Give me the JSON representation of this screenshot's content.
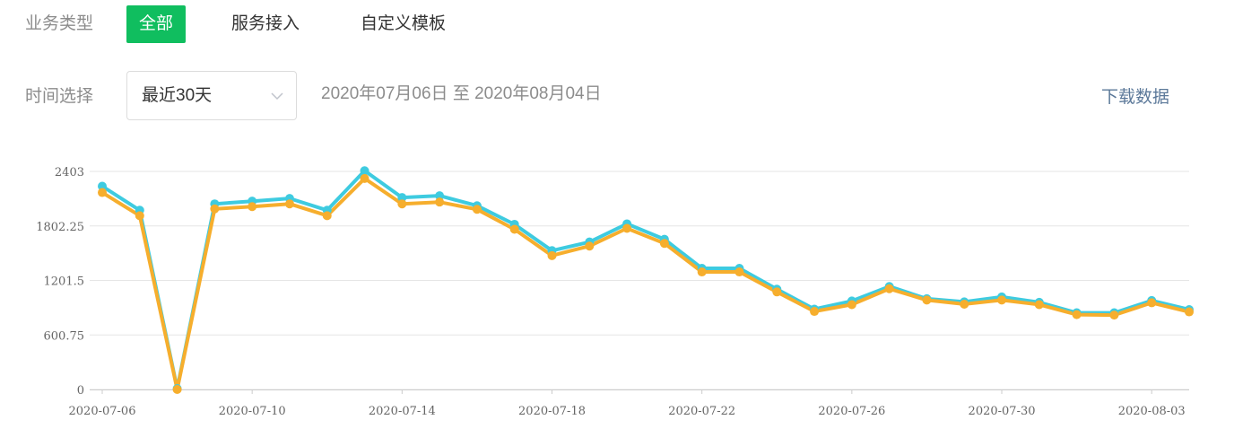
{
  "filters": {
    "business_type": {
      "label": "业务类型",
      "tabs": [
        {
          "label": "全部",
          "active": true
        },
        {
          "label": "服务接入",
          "active": false
        },
        {
          "label": "自定义模板",
          "active": false
        }
      ]
    },
    "time": {
      "label": "时间选择",
      "selected": "最近30天",
      "range_text": "2020年07月06日 至 2020年08月04日"
    },
    "download_label": "下载数据"
  },
  "colors": {
    "accent": "#10be5f",
    "series_cyan": "#3ecbe0",
    "series_orange": "#f6ae2d",
    "link": "#5b7899"
  },
  "chart_data": {
    "type": "line",
    "x": [
      "2020-07-06",
      "2020-07-07",
      "2020-07-08",
      "2020-07-09",
      "2020-07-10",
      "2020-07-11",
      "2020-07-12",
      "2020-07-13",
      "2020-07-14",
      "2020-07-15",
      "2020-07-16",
      "2020-07-17",
      "2020-07-18",
      "2020-07-19",
      "2020-07-20",
      "2020-07-21",
      "2020-07-22",
      "2020-07-23",
      "2020-07-24",
      "2020-07-25",
      "2020-07-26",
      "2020-07-27",
      "2020-07-28",
      "2020-07-29",
      "2020-07-30",
      "2020-07-31",
      "2020-08-01",
      "2020-08-02",
      "2020-08-03",
      "2020-08-04"
    ],
    "xticks": [
      "2020-07-06",
      "2020-07-10",
      "2020-07-14",
      "2020-07-18",
      "2020-07-22",
      "2020-07-26",
      "2020-07-30",
      "2020-08-03"
    ],
    "yticks": [
      "2403",
      "1802.25",
      "1201.5",
      "600.75",
      "0"
    ],
    "ylim": [
      0,
      2403
    ],
    "grid": true,
    "series": [
      {
        "color": "#3ecbe0",
        "values": [
          2240,
          1975,
          10,
          2045,
          2075,
          2105,
          1975,
          2410,
          2115,
          2135,
          2025,
          1820,
          1530,
          1625,
          1825,
          1655,
          1335,
          1335,
          1105,
          885,
          975,
          1135,
          1000,
          965,
          1020,
          960,
          845,
          845,
          980,
          880
        ]
      },
      {
        "color": "#f6ae2d",
        "values": [
          2170,
          1915,
          0,
          1990,
          2015,
          2045,
          1915,
          2325,
          2045,
          2065,
          1985,
          1765,
          1475,
          1580,
          1775,
          1610,
          1295,
          1295,
          1075,
          860,
          935,
          1110,
          985,
          940,
          985,
          935,
          825,
          820,
          955,
          855
        ]
      }
    ]
  }
}
